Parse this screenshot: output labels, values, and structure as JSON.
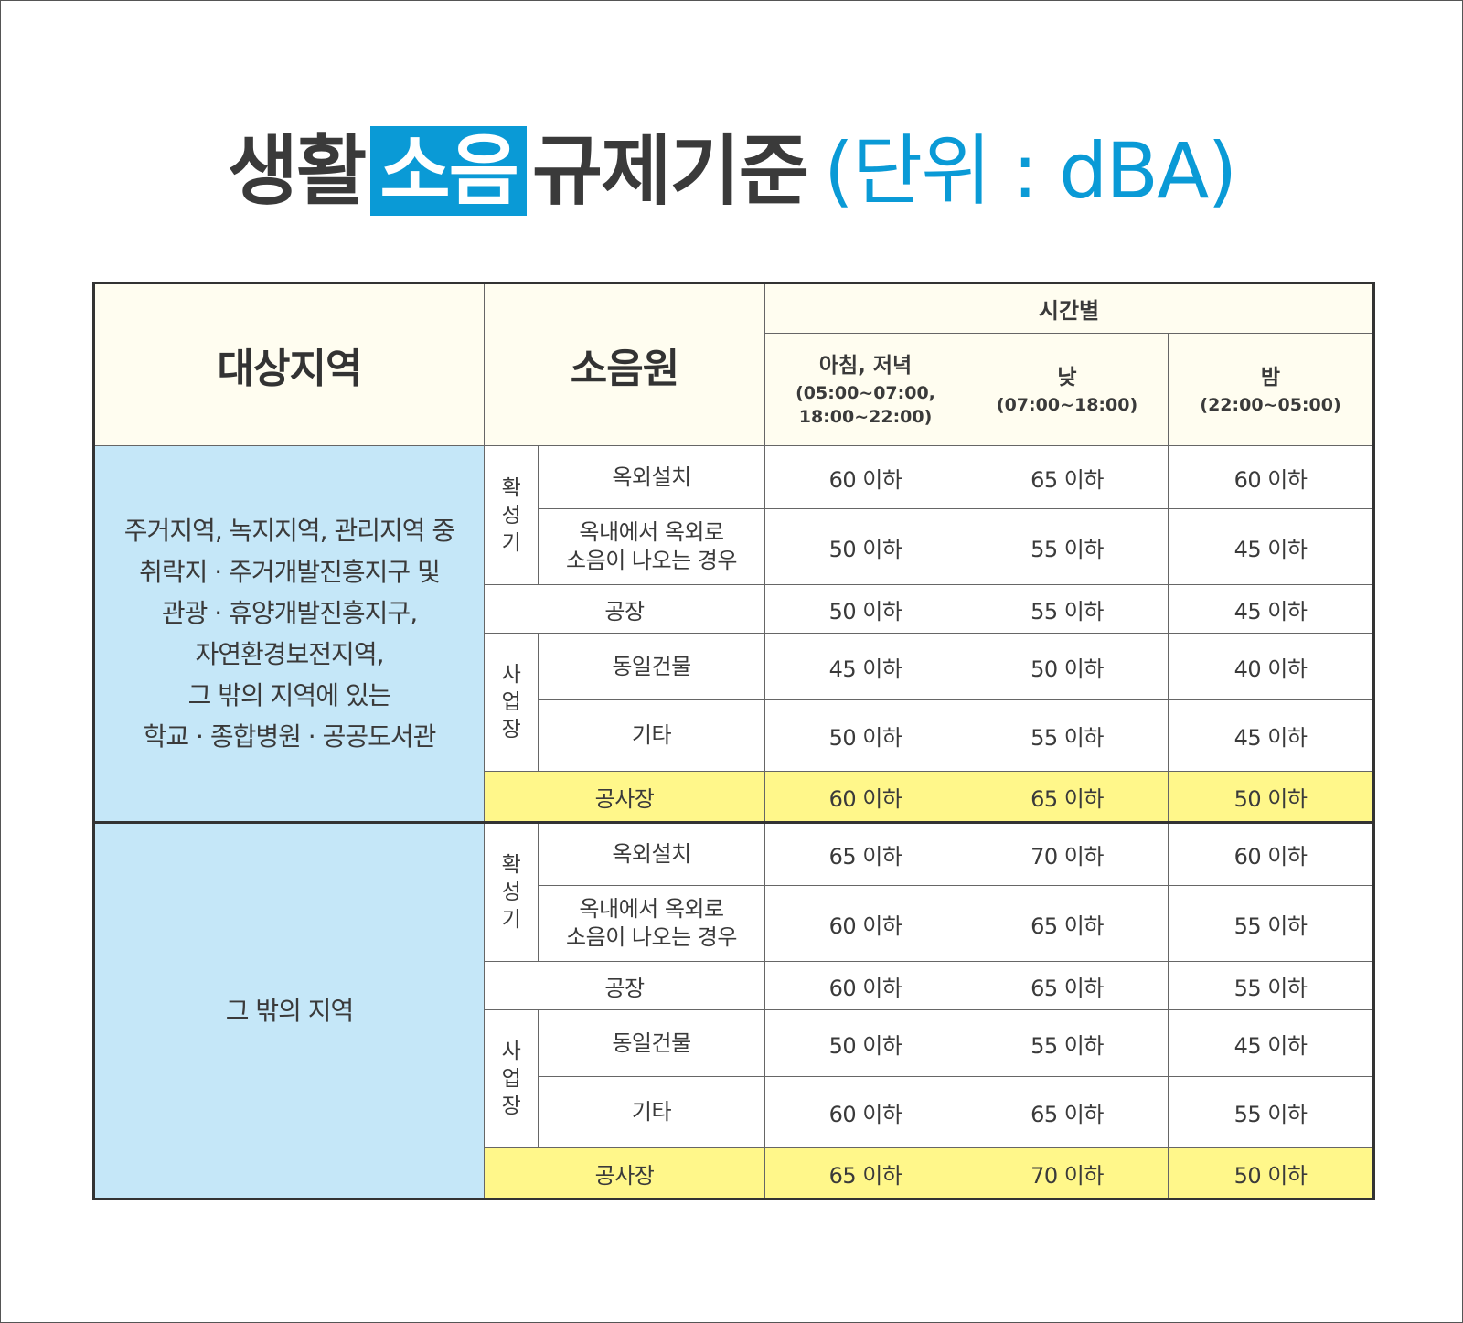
{
  "title": {
    "part1": "생활",
    "highlight": "소음",
    "part2": "규제기준",
    "unit": "(단위 : dBA)"
  },
  "colors": {
    "accent": "#0a9ad6",
    "area_bg": "#c5e7f8",
    "header_bg": "#fffdf0",
    "construction_bg": "#fff78a"
  },
  "header": {
    "area": "대상지역",
    "source": "소음원",
    "time": "시간별",
    "periods": [
      {
        "name": "아침, 저녁",
        "range": "(05:00~07:00, 18:00~22:00)"
      },
      {
        "name": "낮",
        "range": "(07:00~18:00)"
      },
      {
        "name": "밤",
        "range": "(22:00~05:00)"
      }
    ]
  },
  "sections": [
    {
      "area": "주거지역, 녹지지역, 관리지역 중\n취락지 · 주거개발진흥지구 및\n관광 · 휴양개발진흥지구,\n자연환경보전지역,\n그 밖의 지역에 있는\n학교 · 종합병원 · 공공도서관",
      "rows": [
        {
          "group": "확성기",
          "source": "옥외설치",
          "values": [
            "60 이하",
            "65 이하",
            "60 이하"
          ]
        },
        {
          "group": "확성기",
          "source": "옥내에서 옥외로\n소음이 나오는 경우",
          "values": [
            "50 이하",
            "55 이하",
            "45 이하"
          ]
        },
        {
          "group": "",
          "source": "공장",
          "values": [
            "50 이하",
            "55 이하",
            "45 이하"
          ]
        },
        {
          "group": "사업장",
          "source": "동일건물",
          "values": [
            "45 이하",
            "50 이하",
            "40 이하"
          ]
        },
        {
          "group": "사업장",
          "source": "기타",
          "values": [
            "50 이하",
            "55 이하",
            "45 이하"
          ]
        },
        {
          "group": "",
          "source": "공사장",
          "values": [
            "60 이하",
            "65 이하",
            "50 이하"
          ]
        }
      ]
    },
    {
      "area": "그 밖의 지역",
      "rows": [
        {
          "group": "확성기",
          "source": "옥외설치",
          "values": [
            "65 이하",
            "70 이하",
            "60 이하"
          ]
        },
        {
          "group": "확성기",
          "source": "옥내에서 옥외로\n소음이 나오는 경우",
          "values": [
            "60 이하",
            "65 이하",
            "55 이하"
          ]
        },
        {
          "group": "",
          "source": "공장",
          "values": [
            "60 이하",
            "65 이하",
            "55 이하"
          ]
        },
        {
          "group": "사업장",
          "source": "동일건물",
          "values": [
            "50 이하",
            "55 이하",
            "45 이하"
          ]
        },
        {
          "group": "사업장",
          "source": "기타",
          "values": [
            "60 이하",
            "65 이하",
            "55 이하"
          ]
        },
        {
          "group": "",
          "source": "공사장",
          "values": [
            "65 이하",
            "70 이하",
            "50 이하"
          ]
        }
      ]
    }
  ]
}
